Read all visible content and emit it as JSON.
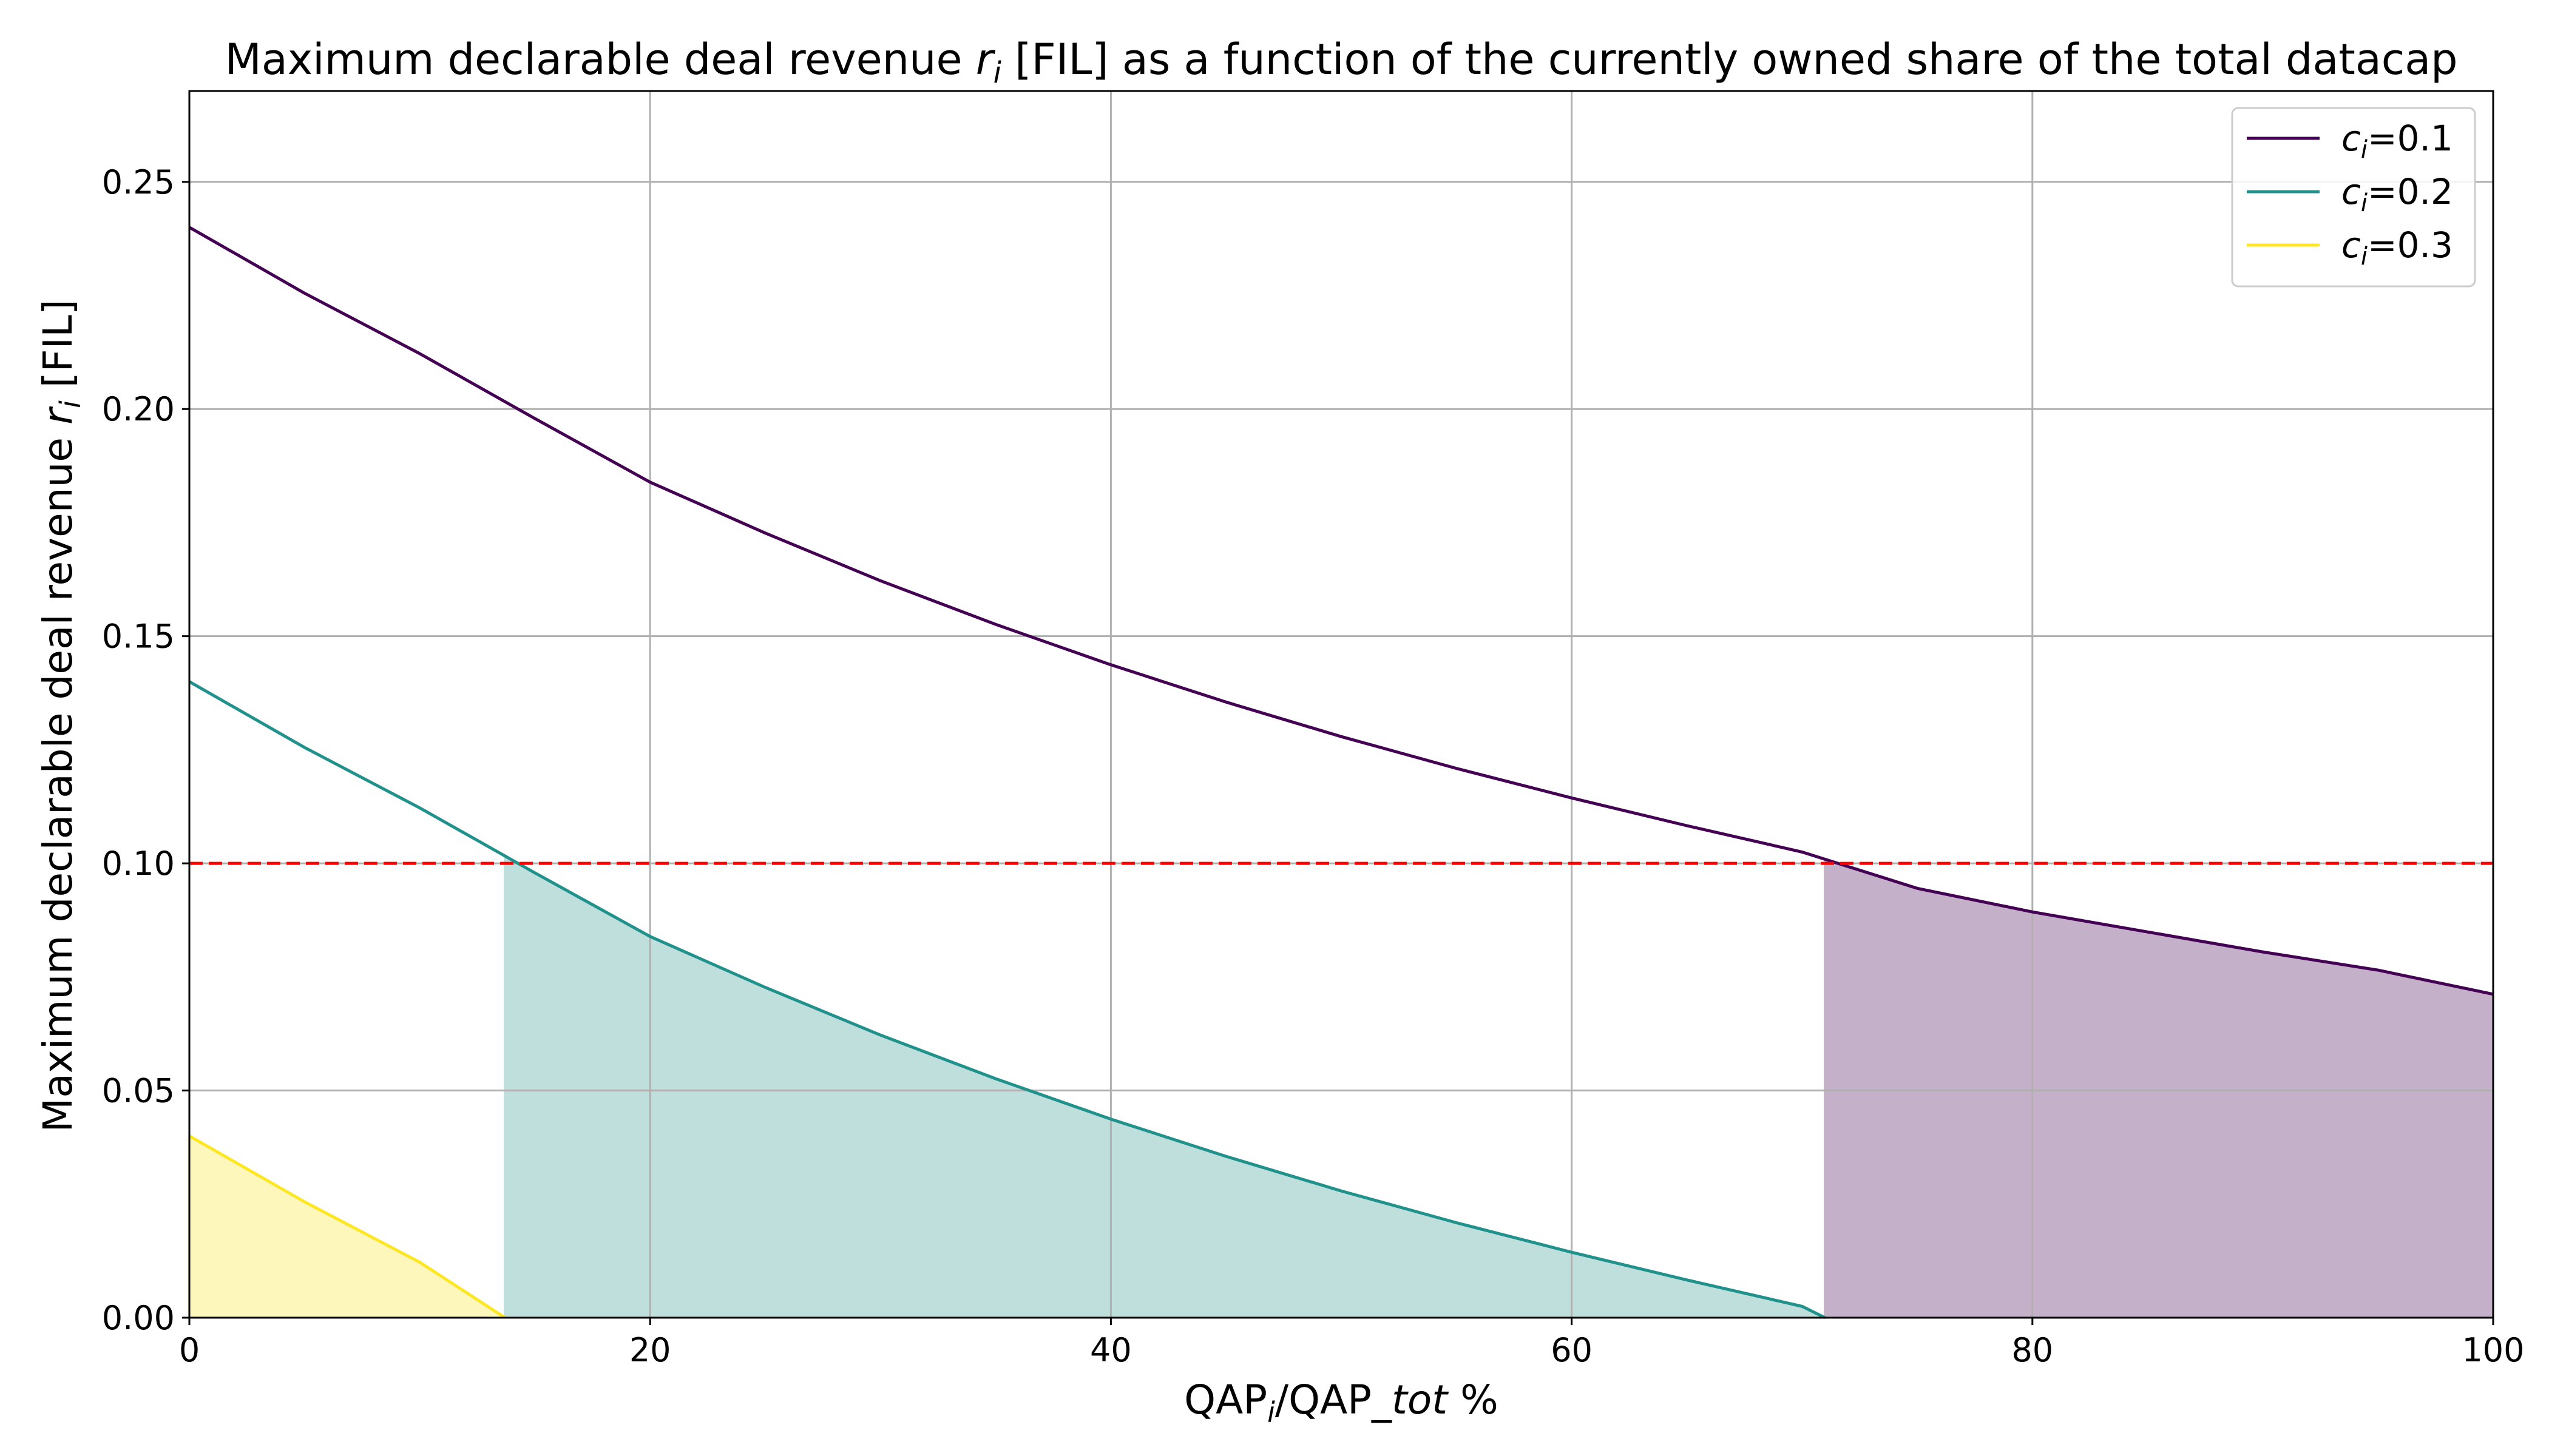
{
  "chart_data": {
    "type": "line",
    "title": {
      "before": "Maximum declarable deal revenue ",
      "symbol": "r",
      "symbol_sub": "i",
      "after": " [FIL]  as a function of the currently owned share of the total datacap"
    },
    "xlabel": {
      "main": "QAP",
      "sub": "i",
      "mid": "/QAP_",
      "ital": "tot",
      "tail": " %"
    },
    "ylabel": {
      "main": "Maximum declarable deal revenue ",
      "symbol": "r",
      "symbol_sub": "i",
      "tail": " [FIL]"
    },
    "xlim": [
      0,
      100
    ],
    "ylim": [
      0,
      0.27
    ],
    "x_ticks": [
      {
        "value": 0,
        "label": "0"
      },
      {
        "value": 20,
        "label": "20"
      },
      {
        "value": 40,
        "label": "40"
      },
      {
        "value": 60,
        "label": "60"
      },
      {
        "value": 80,
        "label": "80"
      },
      {
        "value": 100,
        "label": "100"
      }
    ],
    "y_ticks": [
      {
        "value": 0,
        "label": "0.00"
      },
      {
        "value": 0.05,
        "label": "0.05"
      },
      {
        "value": 0.1,
        "label": "0.10"
      },
      {
        "value": 0.15,
        "label": "0.15"
      },
      {
        "value": 0.2,
        "label": "0.20"
      },
      {
        "value": 0.25,
        "label": "0.25"
      }
    ],
    "grid": true,
    "legend_position": "top-right",
    "x": [
      0,
      5,
      10,
      15,
      20,
      25,
      30,
      35,
      40,
      45,
      50,
      55,
      60,
      65,
      70,
      75,
      80,
      85,
      90,
      95,
      100
    ],
    "series": [
      {
        "name": "ci=0.1",
        "legend_symbol": "c",
        "legend_sub": "i",
        "legend_value": "=0.1",
        "color": "#440154",
        "values": [
          0.24,
          0.2255,
          0.2122,
          0.1979,
          0.1839,
          0.1727,
          0.1622,
          0.1526,
          0.1437,
          0.1355,
          0.1279,
          0.1209,
          0.1144,
          0.1083,
          0.1025,
          0.0945,
          0.0893,
          0.0849,
          0.0805,
          0.0765,
          0.0712
        ],
        "fill": {
          "from_x": 71,
          "to_x": 100,
          "color": "#c5b0ca"
        }
      },
      {
        "name": "ci=0.2",
        "legend_symbol": "c",
        "legend_sub": "i",
        "legend_value": "=0.2",
        "color": "#21918c",
        "values": [
          0.14,
          0.1255,
          0.1122,
          0.0979,
          0.0839,
          0.0727,
          0.0622,
          0.0526,
          0.0437,
          0.0355,
          0.0279,
          0.0209,
          0.0144,
          0.0083,
          0.0025,
          null,
          null,
          null,
          null,
          null,
          null
        ],
        "end_point": [
          71,
          0
        ],
        "fill": {
          "from_x": 13.7,
          "to_x": 71,
          "color": "#bfdfdd"
        }
      },
      {
        "name": "ci=0.3",
        "legend_symbol": "c",
        "legend_sub": "i",
        "legend_value": "=0.3",
        "color": "#fde725",
        "values": [
          0.04,
          0.0255,
          0.0122,
          null,
          null,
          null,
          null,
          null,
          null,
          null,
          null,
          null,
          null,
          null,
          null,
          null,
          null,
          null,
          null,
          null,
          null
        ],
        "end_point": [
          13.7,
          0
        ],
        "fill": {
          "from_x": 0,
          "to_x": 13.7,
          "color": "#fef7bc"
        }
      }
    ],
    "threshold": {
      "y": 0.1,
      "color": "#ff0000",
      "style": "dashed"
    }
  }
}
